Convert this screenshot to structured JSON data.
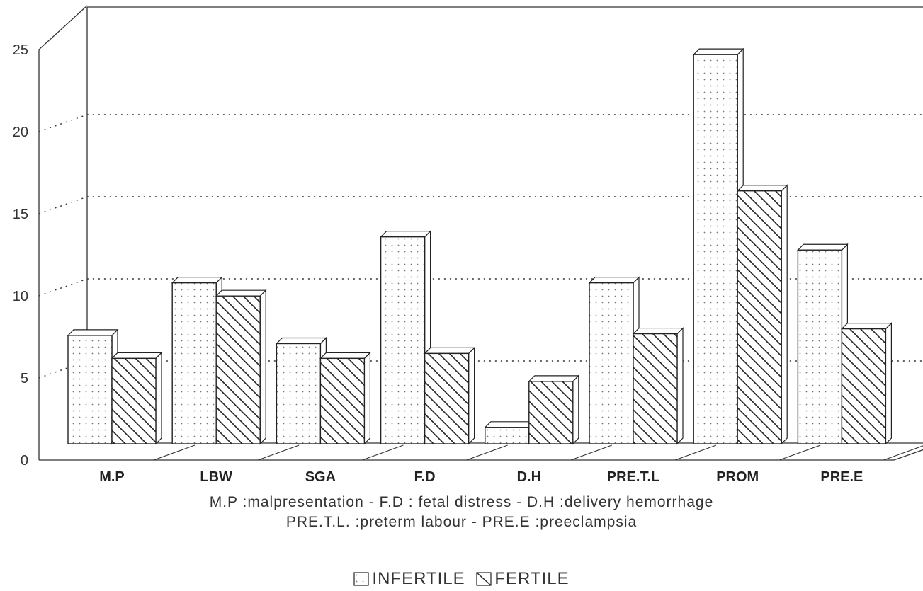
{
  "chart_data": {
    "type": "bar",
    "categories": [
      "M.P",
      "LBW",
      "SGA",
      "F.D",
      "D.H",
      "PRE.T.L",
      "PROM",
      "PRE.E"
    ],
    "series": [
      {
        "name": "INFERTILE",
        "values": [
          6.6,
          9.8,
          6.1,
          12.6,
          1.0,
          9.8,
          23.7,
          11.8
        ]
      },
      {
        "name": "FERTILE",
        "values": [
          5.2,
          9.0,
          5.2,
          5.5,
          3.8,
          6.7,
          15.4,
          7.0
        ]
      }
    ],
    "yticks": [
      "0",
      "5",
      "10",
      "15",
      "20",
      "25"
    ],
    "ylim": [
      0,
      25
    ],
    "grid": true,
    "legend_position": "bottom-center",
    "notes": [
      "M.P :malpresentation - F.D : fetal distress - D.H :delivery hemorrhage",
      "PRE.T.L. :preterm labour - PRE.E :preeclampsia"
    ],
    "colors": {
      "infertile_fill": "#ffffff",
      "fertile_fill": "#ffffff",
      "stroke": "#222222"
    }
  }
}
